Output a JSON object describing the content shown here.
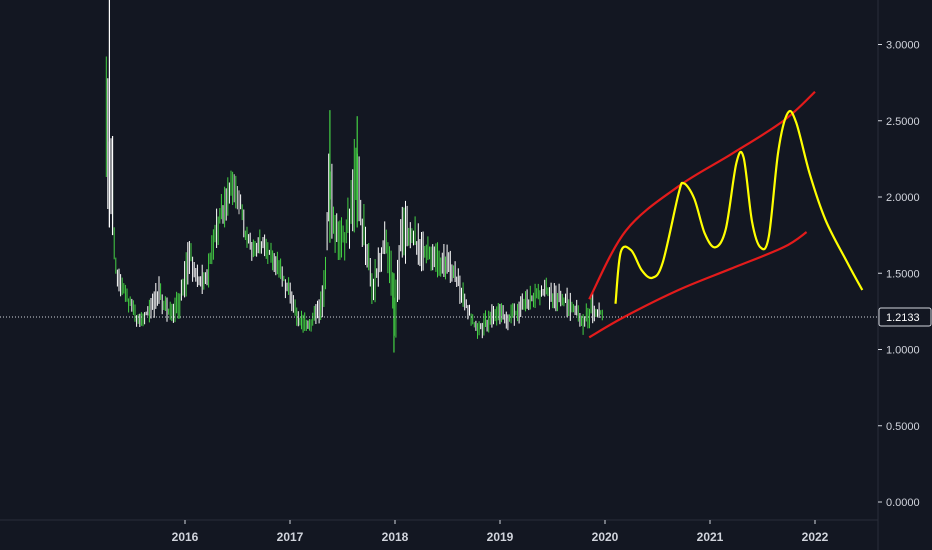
{
  "chart_data": {
    "type": "bar",
    "xlabel": "",
    "ylabel": "",
    "x_range": [
      2015.0,
      2022.55
    ],
    "ylim": [
      -0.05,
      3.3
    ],
    "y_ticks": [
      {
        "value": 3.0,
        "label": "3.0000"
      },
      {
        "value": 2.5,
        "label": "2.5000"
      },
      {
        "value": 2.0,
        "label": "2.0000"
      },
      {
        "value": 1.5,
        "label": "1.5000"
      },
      {
        "value": 1.0,
        "label": "1.0000"
      },
      {
        "value": 0.5,
        "label": "0.5000"
      },
      {
        "value": 0.0,
        "label": "0.0000"
      }
    ],
    "x_ticks": [
      {
        "value": 2016,
        "label": "2016"
      },
      {
        "value": 2017,
        "label": "2017"
      },
      {
        "value": 2018,
        "label": "2018"
      },
      {
        "value": 2019,
        "label": "2019"
      },
      {
        "value": 2020,
        "label": "2020"
      },
      {
        "value": 2021,
        "label": "2021"
      },
      {
        "value": 2022,
        "label": "2022"
      }
    ],
    "last_price": {
      "value": 1.2133,
      "label": "1.2133"
    },
    "grid": false,
    "price_series_ranges": [
      [
        2015.25,
        1.8,
        3.3
      ],
      [
        2015.3,
        1.75,
        2.4
      ],
      [
        2015.34,
        1.45,
        1.65
      ],
      [
        2015.4,
        1.3,
        1.5
      ],
      [
        2015.5,
        1.2,
        1.35
      ],
      [
        2015.55,
        1.1,
        1.25
      ],
      [
        2015.62,
        1.15,
        1.3
      ],
      [
        2015.7,
        1.2,
        1.4
      ],
      [
        2015.75,
        1.25,
        1.5
      ],
      [
        2015.82,
        1.18,
        1.35
      ],
      [
        2015.88,
        1.15,
        1.3
      ],
      [
        2015.95,
        1.2,
        1.45
      ],
      [
        2016.0,
        1.3,
        1.6
      ],
      [
        2016.05,
        1.45,
        1.8
      ],
      [
        2016.1,
        1.4,
        1.65
      ],
      [
        2016.15,
        1.3,
        1.55
      ],
      [
        2016.2,
        1.35,
        1.6
      ],
      [
        2016.25,
        1.45,
        1.75
      ],
      [
        2016.3,
        1.6,
        1.95
      ],
      [
        2016.35,
        1.75,
        2.05
      ],
      [
        2016.42,
        1.85,
        2.15
      ],
      [
        2016.47,
        1.95,
        2.25
      ],
      [
        2016.52,
        1.85,
        2.1
      ],
      [
        2016.58,
        1.65,
        1.85
      ],
      [
        2016.65,
        1.55,
        1.75
      ],
      [
        2016.72,
        1.6,
        1.8
      ],
      [
        2016.8,
        1.55,
        1.72
      ],
      [
        2016.88,
        1.45,
        1.65
      ],
      [
        2016.95,
        1.35,
        1.55
      ],
      [
        2017.0,
        1.25,
        1.45
      ],
      [
        2017.06,
        1.15,
        1.3
      ],
      [
        2017.12,
        1.1,
        1.25
      ],
      [
        2017.2,
        1.1,
        1.25
      ],
      [
        2017.27,
        1.15,
        1.35
      ],
      [
        2017.33,
        1.25,
        1.55
      ],
      [
        2017.38,
        1.7,
        2.55
      ],
      [
        2017.42,
        1.55,
        2.1
      ],
      [
        2017.48,
        1.5,
        1.9
      ],
      [
        2017.53,
        1.55,
        1.95
      ],
      [
        2017.58,
        1.7,
        2.1
      ],
      [
        2017.63,
        1.8,
        2.55
      ],
      [
        2017.68,
        1.65,
        2.05
      ],
      [
        2017.73,
        1.45,
        1.85
      ],
      [
        2017.78,
        1.25,
        1.55
      ],
      [
        2017.83,
        1.35,
        1.7
      ],
      [
        2017.9,
        1.55,
        1.85
      ],
      [
        2017.97,
        1.3,
        1.65
      ],
      [
        2018.0,
        1.0,
        1.4
      ],
      [
        2018.05,
        1.4,
        1.95
      ],
      [
        2018.1,
        1.55,
        2.0
      ],
      [
        2018.17,
        1.55,
        1.9
      ],
      [
        2018.25,
        1.5,
        1.8
      ],
      [
        2018.33,
        1.5,
        1.75
      ],
      [
        2018.42,
        1.45,
        1.72
      ],
      [
        2018.5,
        1.45,
        1.7
      ],
      [
        2018.58,
        1.35,
        1.6
      ],
      [
        2018.65,
        1.25,
        1.45
      ],
      [
        2018.72,
        1.15,
        1.3
      ],
      [
        2018.78,
        1.05,
        1.2
      ],
      [
        2018.85,
        1.08,
        1.25
      ],
      [
        2018.92,
        1.12,
        1.3
      ],
      [
        2019.0,
        1.15,
        1.32
      ],
      [
        2019.08,
        1.12,
        1.3
      ],
      [
        2019.17,
        1.15,
        1.35
      ],
      [
        2019.25,
        1.2,
        1.4
      ],
      [
        2019.33,
        1.25,
        1.45
      ],
      [
        2019.42,
        1.28,
        1.48
      ],
      [
        2019.5,
        1.25,
        1.45
      ],
      [
        2019.58,
        1.25,
        1.45
      ],
      [
        2019.65,
        1.2,
        1.4
      ],
      [
        2019.72,
        1.15,
        1.35
      ],
      [
        2019.78,
        1.08,
        1.25
      ],
      [
        2019.83,
        1.12,
        1.32
      ],
      [
        2019.88,
        1.15,
        1.38
      ],
      [
        2019.93,
        1.18,
        1.32
      ],
      [
        2019.98,
        1.18,
        1.28
      ]
    ],
    "annotations": {
      "upper_channel_line": {
        "color": "#e31b1b",
        "points": [
          [
            2019.85,
            1.33
          ],
          [
            2020.2,
            1.78
          ],
          [
            2020.7,
            2.07
          ],
          [
            2021.2,
            2.28
          ],
          [
            2021.7,
            2.5
          ],
          [
            2022.0,
            2.69
          ]
        ]
      },
      "lower_channel_line": {
        "color": "#e31b1b",
        "points": [
          [
            2019.85,
            1.08
          ],
          [
            2020.2,
            1.22
          ],
          [
            2020.7,
            1.39
          ],
          [
            2021.2,
            1.53
          ],
          [
            2021.7,
            1.67
          ],
          [
            2021.92,
            1.77
          ]
        ]
      },
      "projection_curve": {
        "color": "#ffff00",
        "points": [
          [
            2020.1,
            1.3
          ],
          [
            2020.15,
            1.64
          ],
          [
            2020.25,
            1.65
          ],
          [
            2020.35,
            1.52
          ],
          [
            2020.45,
            1.47
          ],
          [
            2020.55,
            1.57
          ],
          [
            2020.7,
            2.02
          ],
          [
            2020.75,
            2.09
          ],
          [
            2020.85,
            1.99
          ],
          [
            2020.95,
            1.76
          ],
          [
            2021.05,
            1.67
          ],
          [
            2021.15,
            1.79
          ],
          [
            2021.25,
            2.22
          ],
          [
            2021.32,
            2.26
          ],
          [
            2021.4,
            1.84
          ],
          [
            2021.48,
            1.67
          ],
          [
            2021.56,
            1.74
          ],
          [
            2021.65,
            2.3
          ],
          [
            2021.74,
            2.55
          ],
          [
            2021.82,
            2.49
          ],
          [
            2021.95,
            2.15
          ],
          [
            2022.1,
            1.85
          ],
          [
            2022.3,
            1.58
          ],
          [
            2022.45,
            1.39
          ]
        ]
      }
    }
  }
}
